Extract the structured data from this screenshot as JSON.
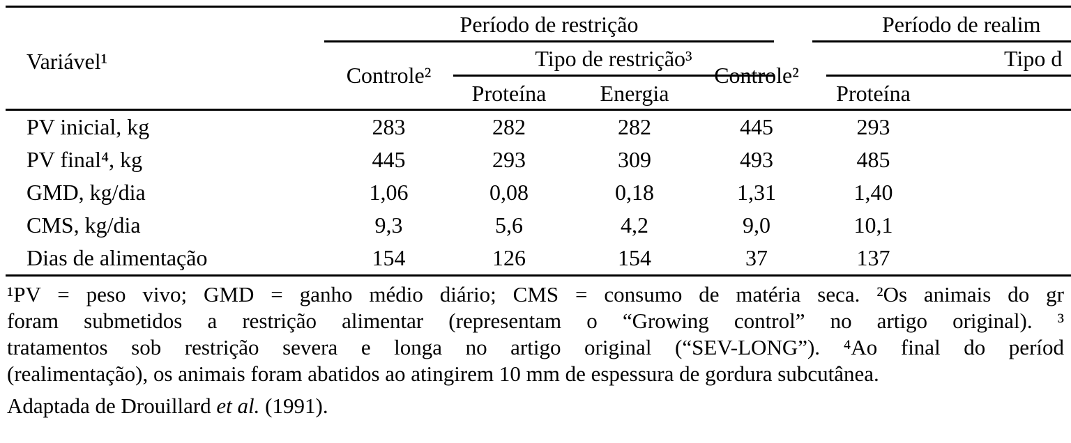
{
  "colors": {
    "background": "#ffffff",
    "text": "#000000",
    "rule": "#000000"
  },
  "table": {
    "variable_header": "Variável¹",
    "group_left": "Período de restrição",
    "group_right": "Período de realim",
    "controle_left": "Controle²",
    "tipo_left": "Tipo de restrição³",
    "proteina_left": "Proteína",
    "energia_left": "Energia",
    "controle_right": "Controle²",
    "tipo_right": "Tipo d",
    "proteina_right": "Proteína",
    "rows": [
      {
        "label": "PV inicial, kg",
        "values": [
          "283",
          "282",
          "282",
          "445",
          "293"
        ]
      },
      {
        "label": "PV final⁴, kg",
        "values": [
          "445",
          "293",
          "309",
          "493",
          "485"
        ]
      },
      {
        "label": "GMD, kg/dia",
        "values": [
          "1,06",
          "0,08",
          "0,18",
          "1,31",
          "1,40"
        ]
      },
      {
        "label": "CMS, kg/dia",
        "values": [
          "9,3",
          "5,6",
          "4,2",
          "9,0",
          "10,1"
        ]
      },
      {
        "label": "Dias de alimentação",
        "values": [
          "154",
          "126",
          "154",
          "37",
          "137"
        ]
      }
    ]
  },
  "footnotes": {
    "line1": "¹PV = peso vivo; GMD = ganho médio diário; CMS = consumo de matéria seca. ²Os animais do gr",
    "line2": "foram submetidos a restrição alimentar (representam o “Growing control” no artigo original). ³",
    "line3": "tratamentos sob restrição severa e longa no artigo original (“SEV-LONG”). ⁴Ao final do períod",
    "line4": "(realimentação), os animais foram abatidos ao atingirem 10 mm de espessura de gordura subcutânea.",
    "line5_parts": {
      "pre": "Adaptada de Drouillard ",
      "italic": "et al.",
      "post": " (1991)."
    }
  }
}
